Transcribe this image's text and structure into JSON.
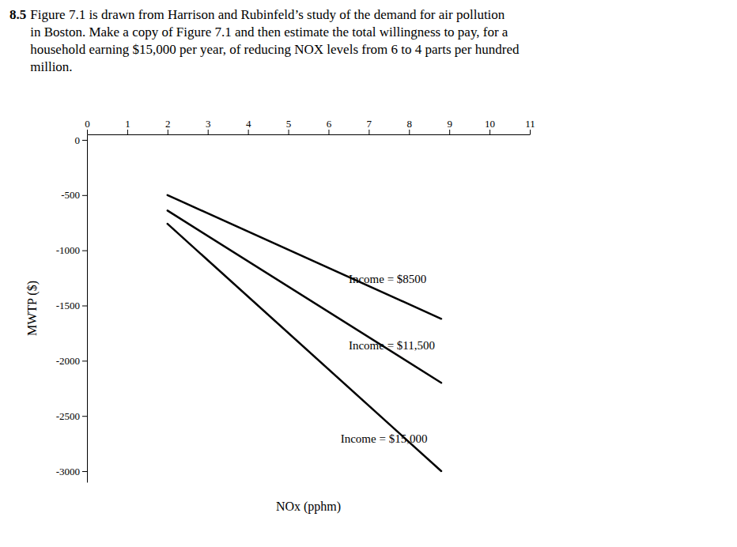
{
  "chart_data": {
    "type": "line",
    "title": "8.5",
    "subtitle": " Figure 7.1 is drawn from Harrison and Rubinfeld’s study of the demand for air pollution\nin Boston.  Make a copy of Figure 7.1 and then estimate the total willingness to pay, for a\nhousehold earning $15,000 per year, of reducing NOX levels from 6 to 4 parts per hundred\nmillion.",
    "x_label": "NOx (pphm)",
    "y_label": "MWTP ($)",
    "x": [
      2,
      8.8
    ],
    "series": [
      {
        "color": "#000000",
        "values": [
          -500,
          -1620
        ]
      },
      {
        "color": "#000000",
        "values": [
          -640,
          -2200
        ]
      },
      {
        "color": "#000000",
        "values": [
          -760,
          -3000
        ]
      }
    ],
    "annotations": [
      {
        "text": "Income = $8500",
        "x": 6.5,
        "y": -1270
      },
      {
        "text": "Income = $11,500",
        "x": 6.5,
        "y": -1870
      },
      {
        "text": "Income = $15,000",
        "x": 6.3,
        "y": -2720
      }
    ],
    "xlim": [
      0,
      11
    ],
    "ylim": [
      -3100,
      50
    ],
    "xticks": [
      0,
      1,
      2,
      3,
      4,
      5,
      6,
      7,
      8,
      9,
      10,
      11
    ],
    "yticks": [
      0,
      -500,
      -1000,
      -1500,
      -2000,
      -2500,
      -3000
    ],
    "grid": false
  }
}
